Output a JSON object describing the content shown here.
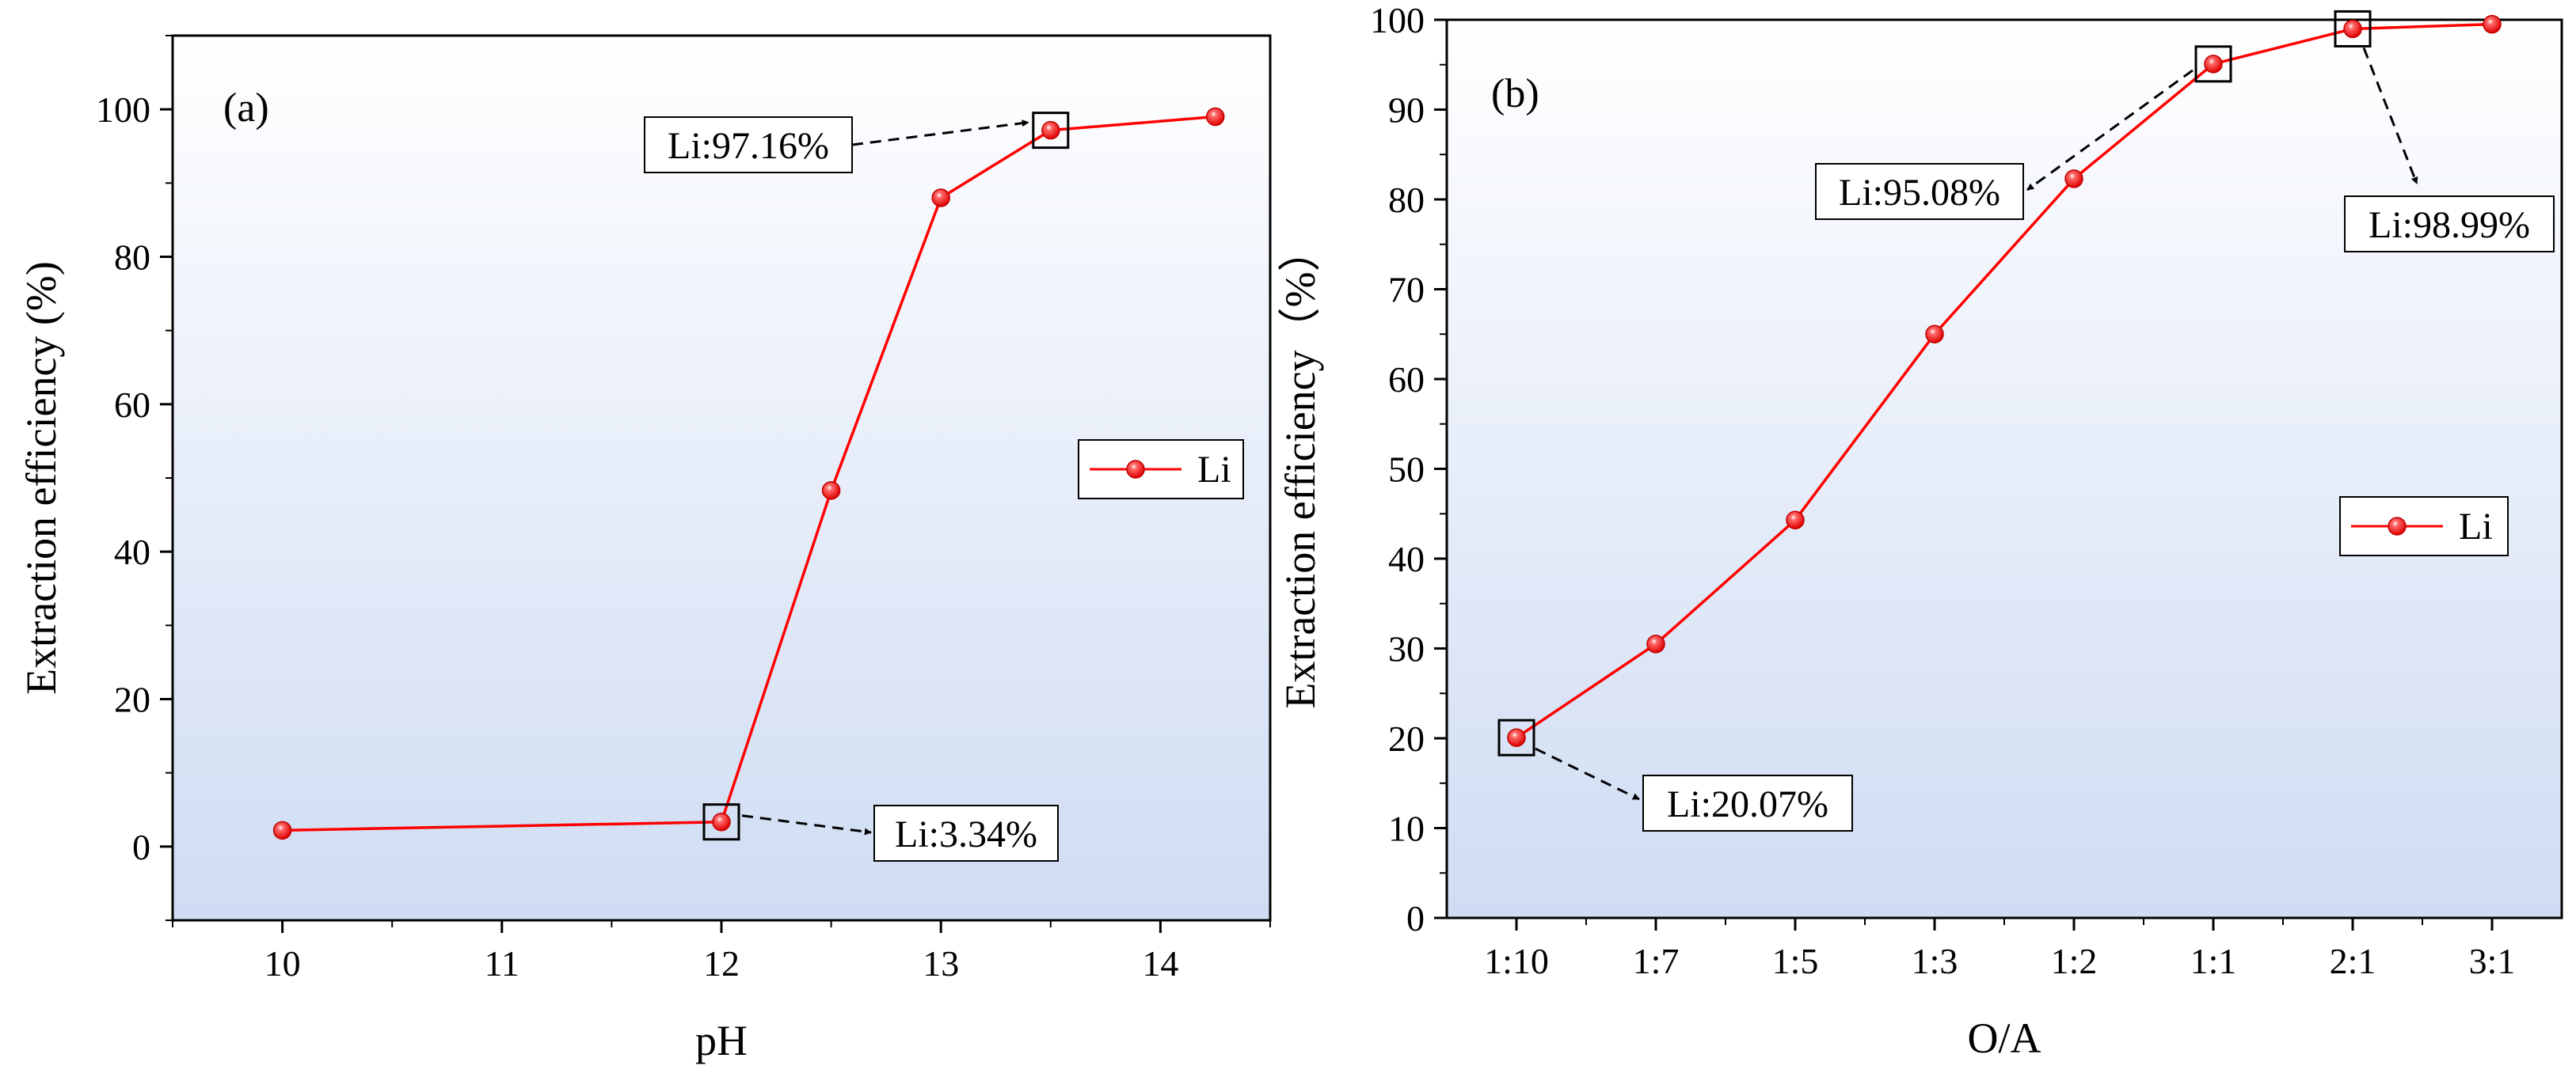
{
  "colors": {
    "series": "#ff0000",
    "marker_fill": "#ff1a1a",
    "bg_top": "#ffffff",
    "bg_bottom": "#cfdcf3",
    "axis": "#000000"
  },
  "chart_data": [
    {
      "type": "line",
      "panel_label": "(a)",
      "xlabel": "pH",
      "ylabel": "Extraction efficiency (%)",
      "xlim": [
        9.5,
        14.5
      ],
      "ylim": [
        -10,
        110
      ],
      "x_ticks": [
        10,
        11,
        12,
        13,
        14
      ],
      "x_tick_labels": [
        "10",
        "11",
        "12",
        "13",
        "14"
      ],
      "y_ticks": [
        0,
        20,
        40,
        60,
        80,
        100
      ],
      "y_tick_labels": [
        "0",
        "20",
        "40",
        "60",
        "80",
        "100"
      ],
      "legend": [
        "Li"
      ],
      "legend_position": "right",
      "series": [
        {
          "name": "Li",
          "x": [
            10,
            12,
            12.5,
            13,
            13.5,
            14.25
          ],
          "values": [
            2.2,
            3.34,
            48.3,
            88.0,
            97.16,
            99.0
          ]
        }
      ],
      "annotations": [
        {
          "text": "Li:97.16%",
          "x": 13.5,
          "y": 97.16
        },
        {
          "text": "Li:3.34%",
          "x": 12,
          "y": 3.34
        }
      ]
    },
    {
      "type": "line",
      "panel_label": "(b)",
      "xlabel": "O/A",
      "ylabel": "Extraction efficiency（%）",
      "ylim": [
        0,
        100
      ],
      "categories": [
        "1:10",
        "1:7",
        "1:5",
        "1:3",
        "1:2",
        "1:1",
        "2:1",
        "3:1"
      ],
      "y_ticks": [
        0,
        10,
        20,
        30,
        40,
        50,
        60,
        70,
        80,
        90,
        100
      ],
      "y_tick_labels": [
        "0",
        "10",
        "20",
        "30",
        "40",
        "50",
        "60",
        "70",
        "80",
        "90",
        "100"
      ],
      "legend": [
        "Li"
      ],
      "legend_position": "right",
      "series": [
        {
          "name": "Li",
          "values": [
            20.07,
            30.5,
            44.3,
            65.0,
            82.3,
            95.08,
            98.99,
            99.5
          ]
        }
      ],
      "annotations": [
        {
          "text": "Li:95.08%",
          "category_index": 5,
          "y": 95.08
        },
        {
          "text": "Li:98.99%",
          "category_index": 6,
          "y": 98.99
        },
        {
          "text": "Li:20.07%",
          "category_index": 0,
          "y": 20.07
        }
      ]
    }
  ]
}
